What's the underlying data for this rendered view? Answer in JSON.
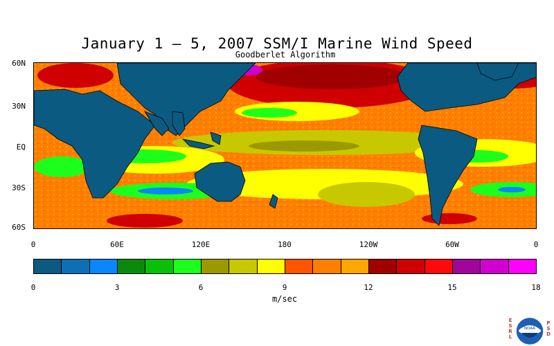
{
  "title": "January 1 – 5, 2007 SSM/I Marine Wind Speed",
  "subtitle": "Goodberlet Algorithm",
  "map": {
    "lat_labels": [
      "60N",
      "30N",
      "EQ",
      "30S",
      "60S"
    ],
    "lon_labels": [
      "0",
      "60E",
      "120E",
      "180",
      "120W",
      "60W",
      "0"
    ],
    "land_color": "#0b5a82",
    "missing_color": "#0b5a82"
  },
  "colorbar": {
    "colors": [
      "#0b5a82",
      "#0d6fb5",
      "#0a86ff",
      "#0a8a0a",
      "#08c008",
      "#1cff1c",
      "#9a9a00",
      "#c8c800",
      "#ffff00",
      "#ff5500",
      "#ff7f00",
      "#ffa600",
      "#a00000",
      "#d00000",
      "#ff0a0a",
      "#a0069a",
      "#d000cf",
      "#ff00ff"
    ],
    "tick_labels": [
      "0",
      "3",
      "6",
      "9",
      "12",
      "15",
      "18"
    ],
    "units": "m/sec"
  },
  "logo": {
    "left_letters": "ESRL",
    "right_letters": "PSD",
    "emblem_text": "NOAA",
    "icon": "noaa-logo-icon"
  }
}
